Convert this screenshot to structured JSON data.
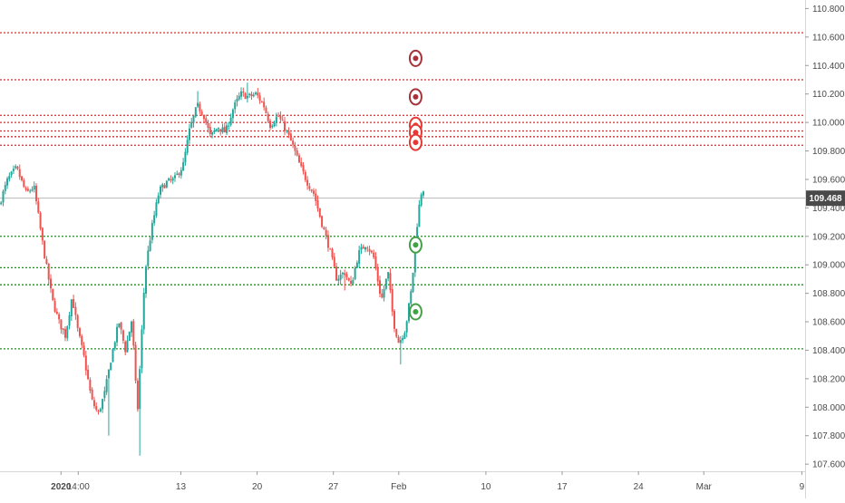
{
  "chart_data": {
    "type": "candlestick",
    "title": "",
    "xlabel": "",
    "ylabel": "",
    "ylim": [
      107.55,
      110.86
    ],
    "y_ticks": [
      107.6,
      107.8,
      108.0,
      108.2,
      108.4,
      108.6,
      108.8,
      109.0,
      109.2,
      109.4,
      109.6,
      109.8,
      110.0,
      110.2,
      110.4,
      110.6,
      110.8
    ],
    "y_tick_labels": [
      "107.600",
      "107.800",
      "108.000",
      "108.200",
      "108.400",
      "108.600",
      "108.800",
      "109.000",
      "109.200",
      "109.400",
      "109.600",
      "109.800",
      "110.000",
      "110.200",
      "110.400",
      "110.600",
      "110.800"
    ],
    "x_ticks": [
      {
        "label": "2020",
        "day": 2
      },
      {
        "label": "14:00",
        "day": 3.58
      },
      {
        "label": "13",
        "day": 13
      },
      {
        "label": "20",
        "day": 20
      },
      {
        "label": "27",
        "day": 27
      },
      {
        "label": "Feb",
        "day": 33
      },
      {
        "label": "10",
        "day": 41
      },
      {
        "label": "17",
        "day": 48
      },
      {
        "label": "24",
        "day": 55
      },
      {
        "label": "Mar",
        "day": 61
      },
      {
        "label": "9",
        "day": 70
      }
    ],
    "xlim": [
      -3.6,
      70.3
    ],
    "x_axis_note": "x values are calendar days counted from 31 Dec 2019 (2020 label = Jan 2)",
    "current_price": {
      "value": 109.468,
      "label": "109.468",
      "color": "#4a4a4a"
    },
    "resistance_levels": [
      110.63,
      110.3,
      110.05,
      110.0,
      109.94,
      109.9,
      109.84
    ],
    "support_levels": [
      109.2,
      108.98,
      108.86,
      108.41
    ],
    "resistance_color": "#d32f2f",
    "support_color": "#1f8f1f",
    "markers": [
      {
        "day": 34.55,
        "price": 110.45,
        "kind": "resistance-dark"
      },
      {
        "day": 34.55,
        "price": 110.18,
        "kind": "resistance-dark"
      },
      {
        "day": 34.55,
        "price": 109.98,
        "kind": "resistance"
      },
      {
        "day": 34.55,
        "price": 109.93,
        "kind": "resistance"
      },
      {
        "day": 34.55,
        "price": 109.86,
        "kind": "resistance"
      },
      {
        "day": 34.55,
        "price": 109.14,
        "kind": "support"
      },
      {
        "day": 34.55,
        "price": 108.67,
        "kind": "support"
      }
    ],
    "up_color": "#26a69a",
    "down_color": "#ef5350",
    "path_anchors": [
      [
        -3.5,
        109.42
      ],
      [
        -2.7,
        109.6
      ],
      [
        -1.9,
        109.68
      ],
      [
        -1.0,
        109.5
      ],
      [
        -0.3,
        109.55
      ],
      [
        0.6,
        109.1
      ],
      [
        1.4,
        108.75
      ],
      [
        2.0,
        108.6
      ],
      [
        2.6,
        108.5
      ],
      [
        3.2,
        108.78
      ],
      [
        3.7,
        108.55
      ],
      [
        4.3,
        108.35
      ],
      [
        5.0,
        108.05
      ],
      [
        5.6,
        107.95
      ],
      [
        6.2,
        108.1
      ],
      [
        6.8,
        108.35
      ],
      [
        7.5,
        108.6
      ],
      [
        8.1,
        108.4
      ],
      [
        8.7,
        108.62
      ],
      [
        9.2,
        107.95
      ],
      [
        9.9,
        108.95
      ],
      [
        10.5,
        109.25
      ],
      [
        11.2,
        109.52
      ],
      [
        11.9,
        109.58
      ],
      [
        12.6,
        109.6
      ],
      [
        13.4,
        109.7
      ],
      [
        14.0,
        109.95
      ],
      [
        14.7,
        110.12
      ],
      [
        15.3,
        110.05
      ],
      [
        15.9,
        109.9
      ],
      [
        16.6,
        109.97
      ],
      [
        17.3,
        109.93
      ],
      [
        18.0,
        110.1
      ],
      [
        18.7,
        110.2
      ],
      [
        19.4,
        110.18
      ],
      [
        20.1,
        110.2
      ],
      [
        20.8,
        110.12
      ],
      [
        21.4,
        109.98
      ],
      [
        22.1,
        110.05
      ],
      [
        22.8,
        109.95
      ],
      [
        23.4,
        109.85
      ],
      [
        24.1,
        109.7
      ],
      [
        24.8,
        109.58
      ],
      [
        25.4,
        109.5
      ],
      [
        26.1,
        109.3
      ],
      [
        26.8,
        109.12
      ],
      [
        27.5,
        108.9
      ],
      [
        28.2,
        108.95
      ],
      [
        28.8,
        108.85
      ],
      [
        29.5,
        109.08
      ],
      [
        30.2,
        109.15
      ],
      [
        30.9,
        109.05
      ],
      [
        31.6,
        108.75
      ],
      [
        32.2,
        108.95
      ],
      [
        32.7,
        108.6
      ],
      [
        33.2,
        108.45
      ],
      [
        33.8,
        108.55
      ],
      [
        34.4,
        108.85
      ],
      [
        34.75,
        109.2
      ],
      [
        35.2,
        109.5
      ],
      [
        35.45,
        109.53
      ]
    ],
    "wick_spikes": [
      {
        "day": 6.4,
        "low": 107.8
      },
      {
        "day": 9.2,
        "low": 107.66
      },
      {
        "day": 11.4,
        "high": 109.52
      },
      {
        "day": 14.6,
        "high": 110.22
      },
      {
        "day": 19.2,
        "high": 110.28
      },
      {
        "day": 28.1,
        "low": 108.82
      },
      {
        "day": 32.9,
        "low": 108.58
      },
      {
        "day": 33.2,
        "low": 108.3
      }
    ]
  }
}
